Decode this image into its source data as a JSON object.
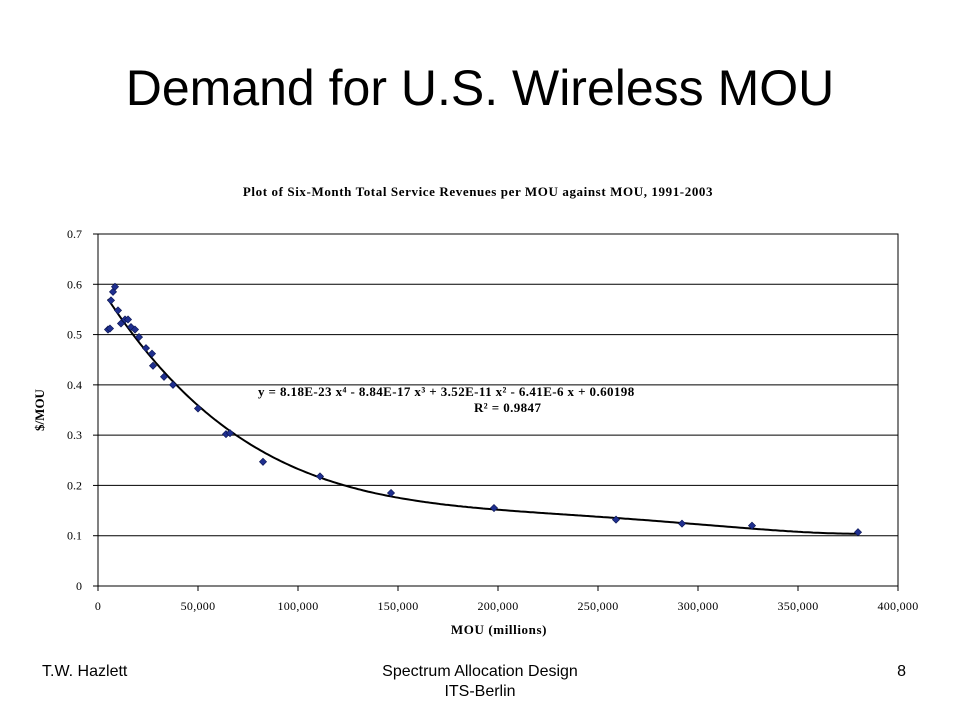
{
  "slide": {
    "title": "Demand for U.S. Wireless MOU",
    "footer_left": "T.W. Hazlett",
    "footer_center_line1": "Spectrum Allocation Design",
    "footer_center_line2": "ITS-Berlin",
    "page_number": "8"
  },
  "chart_data": {
    "type": "scatter",
    "title": "Plot of Six-Month Total Service Revenues per MOU against MOU, 1991-2003",
    "xlabel": "MOU (millions)",
    "ylabel": "$/MOU",
    "xlim": [
      0,
      400000
    ],
    "ylim": [
      0,
      0.7
    ],
    "x_ticks": [
      0,
      50000,
      100000,
      150000,
      200000,
      250000,
      300000,
      350000,
      400000
    ],
    "x_tick_labels": [
      "0",
      "50,000",
      "100,000",
      "150,000",
      "200,000",
      "250,000",
      "300,000",
      "350,000",
      "400,000"
    ],
    "y_ticks": [
      0,
      0.1,
      0.2,
      0.3,
      0.4,
      0.5,
      0.6,
      0.7
    ],
    "y_tick_labels": [
      "0",
      "0.1",
      "0.2",
      "0.3",
      "0.4",
      "0.5",
      "0.6",
      "0.7"
    ],
    "grid": "horizontal",
    "marker_color": "#1f2f8f",
    "trendline_color": "#000000",
    "trendline": {
      "type": "polynomial",
      "order": 4,
      "coefficients": [
        8.18e-23,
        -8.84e-17,
        3.52e-11,
        -6.41e-06,
        0.60198
      ],
      "equation": "y = 8.18E-23 x⁴ - 8.84E-17 x³ + 3.52E-11 x² - 6.41E-6 x + 0.60198",
      "r2": "R² = 0.9847"
    },
    "series": [
      {
        "points": [
          [
            5000,
            0.51
          ],
          [
            6000,
            0.512
          ],
          [
            6500,
            0.568
          ],
          [
            7500,
            0.585
          ],
          [
            8500,
            0.595
          ],
          [
            10000,
            0.548
          ],
          [
            11500,
            0.522
          ],
          [
            13500,
            0.53
          ],
          [
            15000,
            0.53
          ],
          [
            16500,
            0.515
          ],
          [
            18500,
            0.51
          ],
          [
            20500,
            0.495
          ],
          [
            24000,
            0.473
          ],
          [
            27000,
            0.462
          ],
          [
            27500,
            0.438
          ],
          [
            33000,
            0.416
          ],
          [
            37500,
            0.4
          ],
          [
            50000,
            0.353
          ],
          [
            64000,
            0.302
          ],
          [
            66000,
            0.304
          ],
          [
            82500,
            0.247
          ],
          [
            111000,
            0.218
          ],
          [
            146500,
            0.185
          ],
          [
            198000,
            0.155
          ],
          [
            259000,
            0.132
          ],
          [
            292000,
            0.124
          ],
          [
            327000,
            0.12
          ],
          [
            380000,
            0.107
          ]
        ]
      }
    ]
  }
}
